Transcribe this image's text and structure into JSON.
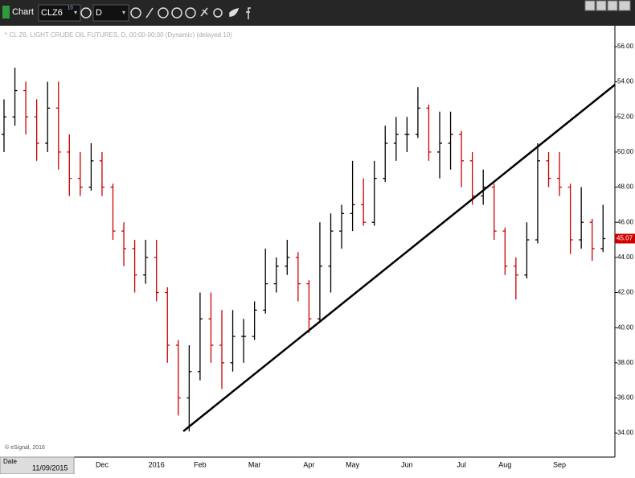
{
  "toolbar": {
    "title": "Chart",
    "symbol": "CLZ6",
    "symbol_badge": "10",
    "interval": "D"
  },
  "status": {
    "label": "Date",
    "value": "11/09/2015"
  },
  "chart_data": {
    "type": "ohlc",
    "subtitle": "* CL Z6, LIGHT CRUDE OIL FUTURES, D, 00:00-00:00 (Dynamic) (delayed 10)",
    "copyright": "© eSignal, 2016",
    "up_color": "#000000",
    "down_color": "#cc0000",
    "categories": [
      null,
      null,
      null,
      null,
      null,
      null,
      null,
      null,
      null,
      "Dec",
      null,
      null,
      null,
      null,
      "2016",
      null,
      null,
      null,
      "Feb",
      null,
      null,
      null,
      null,
      "Mar",
      null,
      null,
      null,
      null,
      "Apr",
      null,
      null,
      null,
      "May",
      null,
      null,
      null,
      null,
      "Jun",
      null,
      null,
      null,
      null,
      "Jul",
      null,
      null,
      null,
      "Aug",
      null,
      null,
      null,
      null,
      "Sep",
      null,
      null,
      null,
      null
    ],
    "open": [
      51,
      52,
      53.5,
      52,
      50.5,
      52.5,
      50,
      48.5,
      48,
      49.5,
      48,
      45.5,
      44.5,
      43,
      44,
      42,
      39,
      36,
      37.5,
      40.5,
      39,
      38,
      39.5,
      39.5,
      41,
      42.5,
      43.5,
      44,
      42.5,
      40.5,
      43.5,
      45.5,
      46.5,
      47,
      46,
      48.5,
      50.5,
      51,
      51,
      52.5,
      50,
      50.5,
      51,
      49.5,
      47.5,
      48,
      45.5,
      43.5,
      43,
      45,
      49.5,
      48.5,
      48,
      45,
      46,
      44.5
    ],
    "high": [
      53,
      54.8,
      54,
      53,
      54,
      54,
      51,
      50,
      50.5,
      50,
      48.2,
      46,
      45,
      45,
      45,
      42.3,
      39.3,
      39,
      42,
      42,
      41,
      41,
      40.5,
      41.5,
      44.5,
      44,
      45,
      44.3,
      42.7,
      46,
      46.5,
      47,
      49.5,
      48.5,
      49.5,
      51.5,
      52,
      52,
      53.7,
      52.7,
      52.3,
      52.3,
      51.2,
      50,
      49,
      48.2,
      45.7,
      44,
      46,
      50.5,
      50,
      50,
      48.2,
      48,
      46.2,
      47
    ],
    "low": [
      50,
      51.5,
      51,
      49.5,
      50,
      49,
      47.5,
      47.5,
      47.8,
      47.5,
      45,
      43.5,
      42,
      42.5,
      41.5,
      38,
      35,
      34.1,
      37,
      38,
      36.5,
      37.5,
      38,
      39.3,
      40.8,
      42,
      43,
      41.5,
      39.7,
      40.3,
      42,
      44.5,
      45.5,
      45.8,
      45.8,
      48.3,
      49.5,
      50,
      50.8,
      49.5,
      48.5,
      49,
      48,
      47,
      47,
      45,
      43,
      41.6,
      42.8,
      44.8,
      48,
      47.5,
      44.2,
      44.5,
      43.8,
      44.3
    ],
    "close": [
      52,
      53.5,
      52,
      50.5,
      52.5,
      50,
      48.5,
      48,
      49.5,
      48,
      45.5,
      44.5,
      43,
      44,
      42,
      39,
      36,
      37.5,
      40.5,
      39,
      38,
      39.5,
      39.5,
      41,
      42.5,
      43.5,
      44,
      42.5,
      40.5,
      43.5,
      45.5,
      46.5,
      47,
      46,
      48.5,
      50.5,
      51,
      51,
      52.5,
      50,
      50.5,
      51,
      49.5,
      47.5,
      48,
      45.5,
      43.5,
      43,
      45,
      49.5,
      48.5,
      48,
      45,
      46,
      44.5,
      45.07
    ],
    "last_price": 45.07,
    "trendline": {
      "x": [
        16.46,
        56.1
      ],
      "values": [
        34.1,
        53.84
      ]
    },
    "ylim": [
      32.63,
      57.19
    ],
    "yticks": [
      {
        "value": 34,
        "label": "34.00"
      },
      {
        "value": 36,
        "label": "36.00"
      },
      {
        "value": 38,
        "label": "38.00"
      },
      {
        "value": 40,
        "label": "40.00"
      },
      {
        "value": 42,
        "label": "42.00"
      },
      {
        "value": 44,
        "label": "44.00"
      },
      {
        "value": 46,
        "label": "46.00"
      },
      {
        "value": 48,
        "label": "48.00"
      },
      {
        "value": 50,
        "label": "50.00"
      },
      {
        "value": 52,
        "label": "52.00"
      },
      {
        "value": 54,
        "label": "54.00"
      },
      {
        "value": 56,
        "label": "56.00"
      }
    ]
  }
}
